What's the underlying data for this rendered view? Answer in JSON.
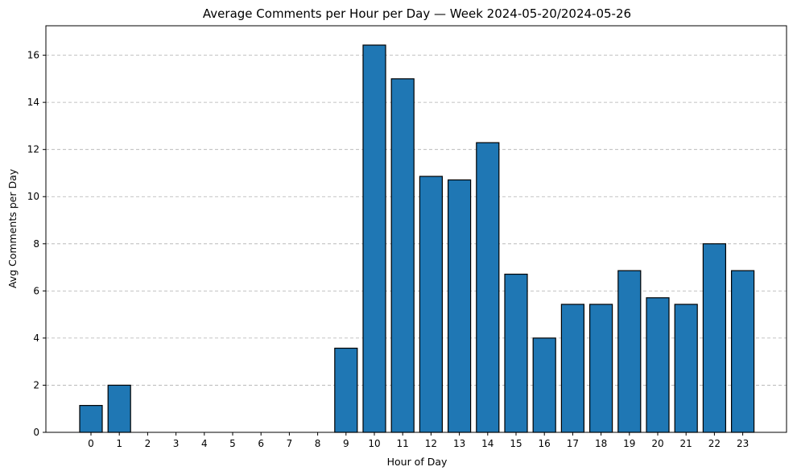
{
  "chart_data": {
    "type": "bar",
    "title": "Average Comments per Hour per Day — Week 2024-05-20/2024-05-26",
    "xlabel": "Hour of Day",
    "ylabel": "Avg Comments per Day",
    "categories": [
      "0",
      "1",
      "2",
      "3",
      "4",
      "5",
      "6",
      "7",
      "8",
      "9",
      "10",
      "11",
      "12",
      "13",
      "14",
      "15",
      "16",
      "17",
      "18",
      "19",
      "20",
      "21",
      "22",
      "23"
    ],
    "values": [
      1.14,
      2.0,
      0,
      0,
      0,
      0,
      0,
      0,
      0,
      3.57,
      16.43,
      15.0,
      10.86,
      10.71,
      12.29,
      6.71,
      4.0,
      5.43,
      5.43,
      6.86,
      5.71,
      5.43,
      8.0,
      6.86
    ],
    "yticks": [
      0,
      2,
      4,
      6,
      8,
      10,
      12,
      14,
      16
    ],
    "ylim": [
      0,
      17.25
    ],
    "grid": "y-dashed",
    "legend": "none",
    "colors": {
      "bar": "#1f77b4",
      "edge": "#000000"
    }
  }
}
